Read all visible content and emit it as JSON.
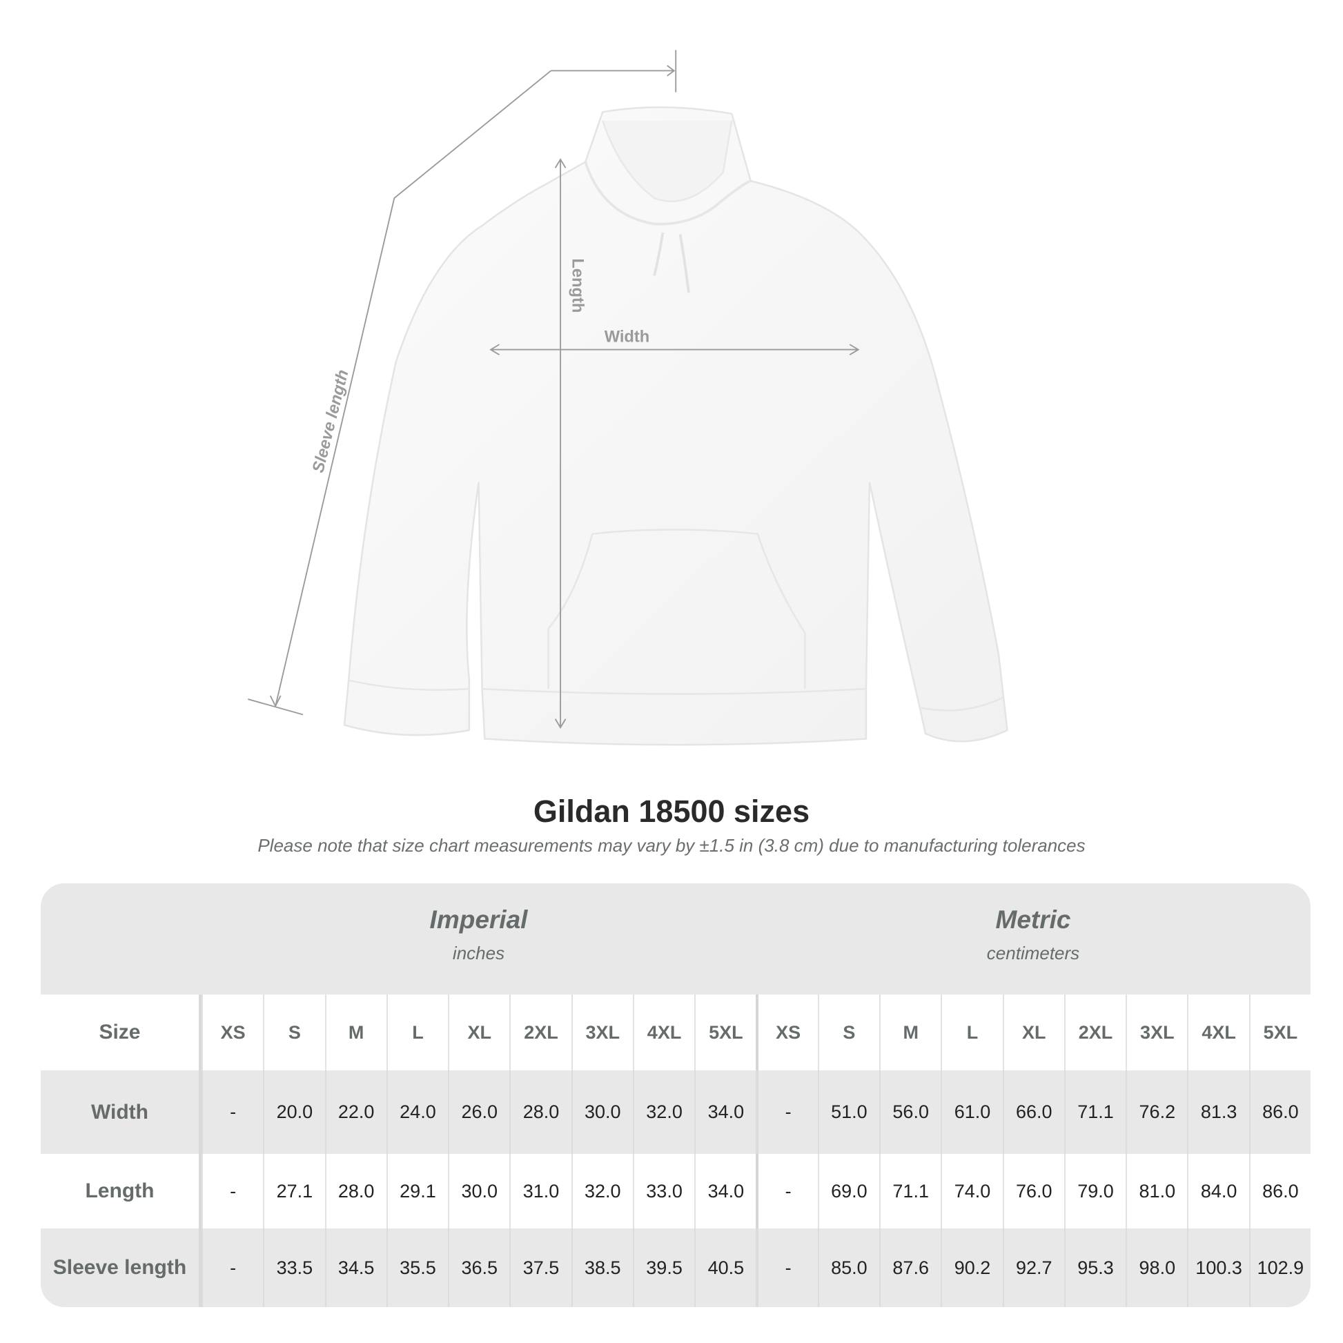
{
  "diagram": {
    "labels": {
      "length": "Length",
      "width": "Width",
      "sleeve": "Sleeve length"
    }
  },
  "title": "Gildan 18500 sizes",
  "note": "Please note that size chart measurements may vary by ±1.5 in (3.8 cm) due to manufacturing tolerances",
  "table": {
    "groups": [
      {
        "name": "Imperial",
        "unit": "inches"
      },
      {
        "name": "Metric",
        "unit": "centimeters"
      }
    ],
    "size_label": "Size",
    "sizes": [
      "XS",
      "S",
      "M",
      "L",
      "XL",
      "2XL",
      "3XL",
      "4XL",
      "5XL"
    ],
    "rows": [
      {
        "label": "Width",
        "imperial": [
          "-",
          "20.0",
          "22.0",
          "24.0",
          "26.0",
          "28.0",
          "30.0",
          "32.0",
          "34.0"
        ],
        "metric": [
          "-",
          "51.0",
          "56.0",
          "61.0",
          "66.0",
          "71.1",
          "76.2",
          "81.3",
          "86.0"
        ]
      },
      {
        "label": "Length",
        "imperial": [
          "-",
          "27.1",
          "28.0",
          "29.1",
          "30.0",
          "31.0",
          "32.0",
          "33.0",
          "34.0"
        ],
        "metric": [
          "-",
          "69.0",
          "71.1",
          "74.0",
          "76.0",
          "79.0",
          "81.0",
          "84.0",
          "86.0"
        ]
      },
      {
        "label": "Sleeve length",
        "imperial": [
          "-",
          "33.5",
          "34.5",
          "35.5",
          "36.5",
          "37.5",
          "38.5",
          "39.5",
          "40.5"
        ],
        "metric": [
          "-",
          "85.0",
          "87.6",
          "90.2",
          "92.7",
          "95.3",
          "98.0",
          "100.3",
          "102.9"
        ]
      }
    ]
  }
}
